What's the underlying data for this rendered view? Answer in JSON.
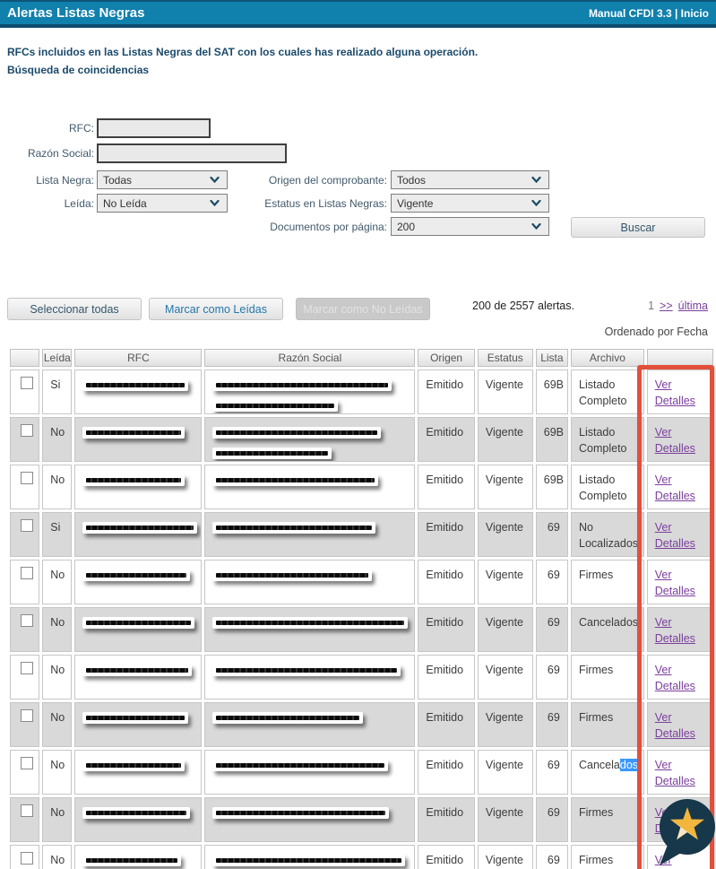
{
  "topbar": {
    "title": "Alertas Listas Negras",
    "link_manual": "Manual CFDI 3.3",
    "separator": " | ",
    "link_inicio": "Inicio"
  },
  "intro": {
    "line1": "RFCs incluidos en las Listas Negras del SAT con los cuales has realizado alguna operación.",
    "line2": "Búsqueda de coincidencias"
  },
  "form": {
    "rfc": {
      "label": "RFC:",
      "value": ""
    },
    "razon_social": {
      "label": "Razón Social:",
      "value": ""
    },
    "lista_negra": {
      "label": "Lista Negra:",
      "value": "Todas"
    },
    "leida": {
      "label": "Leída:",
      "value": "No Leída"
    },
    "origen": {
      "label": "Origen del comprobante:",
      "value": "Todos"
    },
    "estatus": {
      "label": "Estatus en Listas Negras:",
      "value": "Vigente"
    },
    "docs_por_pagina": {
      "label": "Documentos por página:",
      "value": "200"
    },
    "buscar": "Buscar"
  },
  "toolbar": {
    "seleccionar": "Seleccionar todas",
    "marcar_leidas": "Marcar como Leídas",
    "marcar_no_leidas": "Marcar como No Leídas",
    "contador": "200 de 2557 alertas.",
    "pag_actual": "1",
    "pag_siguiente": ">>",
    "pag_ultima": "última",
    "orden": "Ordenado por Fecha"
  },
  "table": {
    "headers": [
      "",
      "Leída",
      "RFC",
      "Razón Social",
      "Origen",
      "Estatus",
      "Lista",
      "Archivo",
      ""
    ],
    "detalles_label": "Ver Detalles",
    "rows": [
      {
        "leida": "Si",
        "origen": "Emitido",
        "estatus": "Vigente",
        "lista": "69B",
        "archivo": "Listado Completo",
        "rfc_w": 118,
        "razon_w": [
          200,
          140
        ]
      },
      {
        "leida": "No",
        "origen": "Emitido",
        "estatus": "Vigente",
        "lista": "69B",
        "archivo": "Listado Completo",
        "rfc_w": 114,
        "razon_w": [
          188,
          133
        ]
      },
      {
        "leida": "No",
        "origen": "Emitido",
        "estatus": "Vigente",
        "lista": "69B",
        "archivo": "Listado Completo",
        "rfc_w": 114,
        "razon_w": [
          185
        ]
      },
      {
        "leida": "Si",
        "origen": "Emitido",
        "estatus": "Vigente",
        "lista": "69",
        "archivo": "No Localizados",
        "rfc_w": 128,
        "razon_w": [
          182
        ]
      },
      {
        "leida": "No",
        "origen": "Emitido",
        "estatus": "Vigente",
        "lista": "69",
        "archivo": "Firmes",
        "rfc_w": 120,
        "razon_w": [
          178
        ]
      },
      {
        "leida": "No",
        "origen": "Emitido",
        "estatus": "Vigente",
        "lista": "69",
        "archivo": "Cancelados",
        "rfc_w": 125,
        "razon_w": [
          218
        ]
      },
      {
        "leida": "No",
        "origen": "Emitido",
        "estatus": "Vigente",
        "lista": "69",
        "archivo": "Firmes",
        "rfc_w": 122,
        "razon_w": [
          210
        ]
      },
      {
        "leida": "No",
        "origen": "Emitido",
        "estatus": "Vigente",
        "lista": "69",
        "archivo": "Firmes",
        "rfc_w": 118,
        "razon_w": [
          168
        ]
      },
      {
        "leida": "No",
        "origen": "Emitido",
        "estatus": "Vigente",
        "lista": "69",
        "archivo": "Cancelados",
        "archivo_pre": "Cancela",
        "archivo_sel": "dos",
        "archivo_post": "",
        "rfc_w": 114,
        "razon_w": [
          196
        ]
      },
      {
        "leida": "No",
        "origen": "Emitido",
        "estatus": "Vigente",
        "lista": "69",
        "archivo": "Firmes",
        "rfc_w": 120,
        "razon_w": [
          197
        ]
      },
      {
        "leida": "No",
        "origen": "Emitido",
        "estatus": "Vigente",
        "lista": "69",
        "archivo": "Firmes",
        "rfc_w": 110,
        "razon_w": [
          215
        ]
      }
    ]
  },
  "colors": {
    "topbar_blue": "#1080ad",
    "topbar_border": "#0d4c6d",
    "annotation_red": "#e2503c",
    "link_purple": "#7b3f9d",
    "row_alt_grey": "#d9d9d9",
    "selection_blue": "#3b97fb",
    "badge_navy": "#17374a",
    "star_gold": "#f2b53e",
    "star_cream": "#f7e6c4"
  }
}
